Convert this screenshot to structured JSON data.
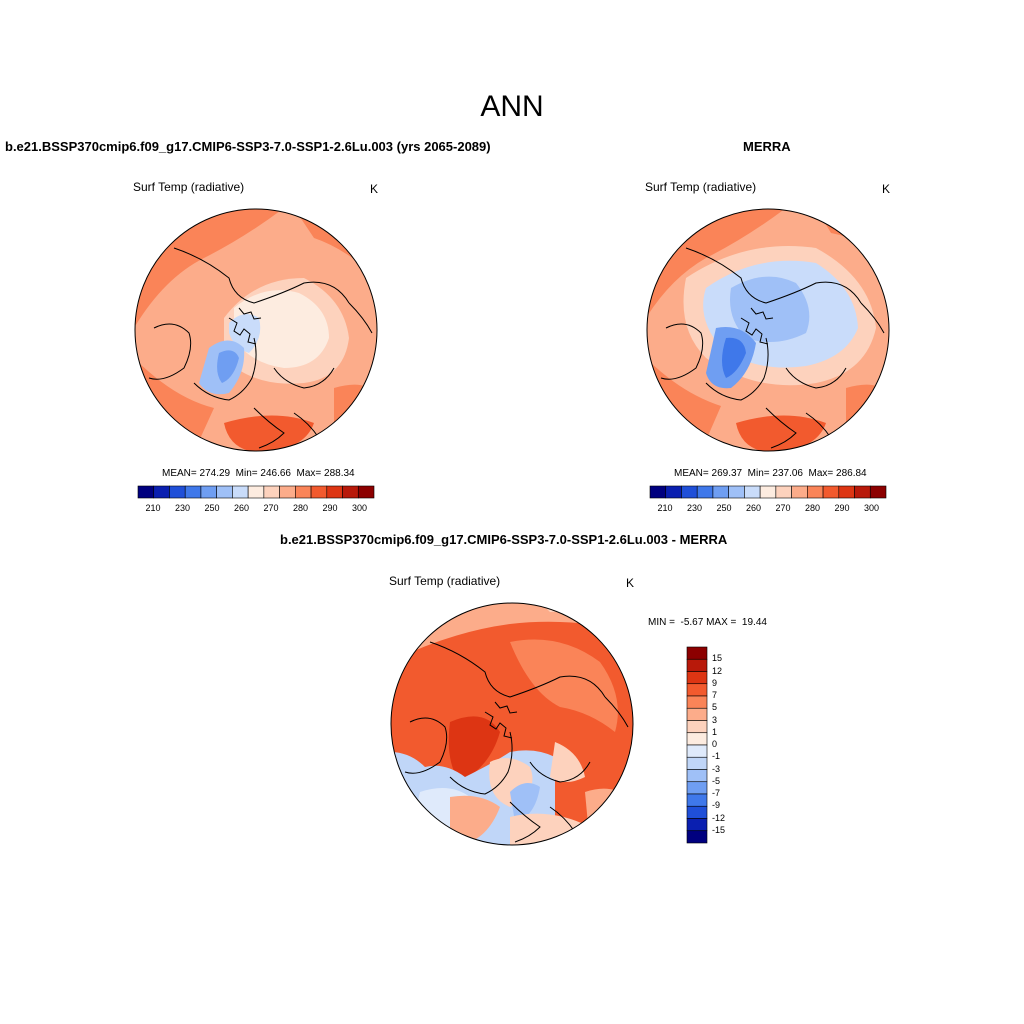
{
  "main_title": "ANN",
  "panels": {
    "model": {
      "title": "b.e21.BSSP370cmip6.f09_g17.CMIP6-SSP3-7.0-SSP1-2.6Lu.003 (yrs 2065-2089)",
      "variable": "Surf Temp (radiative)",
      "units": "K",
      "stats": "MEAN= 274.29  Min= 246.66  Max= 288.34"
    },
    "obs": {
      "title": "MERRA",
      "variable": "Surf Temp (radiative)",
      "units": "K",
      "stats": "MEAN= 269.37  Min= 237.06  Max= 286.84"
    },
    "diff": {
      "title": "b.e21.BSSP370cmip6.f09_g17.CMIP6-SSP3-7.0-SSP1-2.6Lu.003 - MERRA",
      "variable": "Surf Temp (radiative)",
      "units": "K",
      "stats": "MIN =  -5.67 MAX =  19.44"
    }
  },
  "colorbar_abs": {
    "labels": [
      "210",
      "230",
      "250",
      "260",
      "270",
      "280",
      "290",
      "300"
    ],
    "colors": [
      "#00007f",
      "#0a1fb0",
      "#1f4fd8",
      "#3f78ea",
      "#6f9ef2",
      "#9fc0f7",
      "#c9dcfa",
      "#fdece0",
      "#fdd2bd",
      "#fcac8a",
      "#fa8458",
      "#f25a2e",
      "#dd3513",
      "#b8190a",
      "#8c0000"
    ]
  },
  "colorbar_diff": {
    "labels": [
      "15",
      "12",
      "9",
      "7",
      "5",
      "3",
      "1",
      "0",
      "-1",
      "-3",
      "-5",
      "-7",
      "-9",
      "-12",
      "-15"
    ],
    "colors": [
      "#8c0000",
      "#b8190a",
      "#dd3513",
      "#f25a2e",
      "#fa8458",
      "#fcac8a",
      "#fdd2bd",
      "#fdece0",
      "#dfeafb",
      "#c0d6f8",
      "#9fc0f7",
      "#6f9ef2",
      "#3f78ea",
      "#1f4fd8",
      "#0a1fb0",
      "#00007f"
    ]
  },
  "colors": {
    "background": "#ffffff",
    "coast": "#000000"
  }
}
